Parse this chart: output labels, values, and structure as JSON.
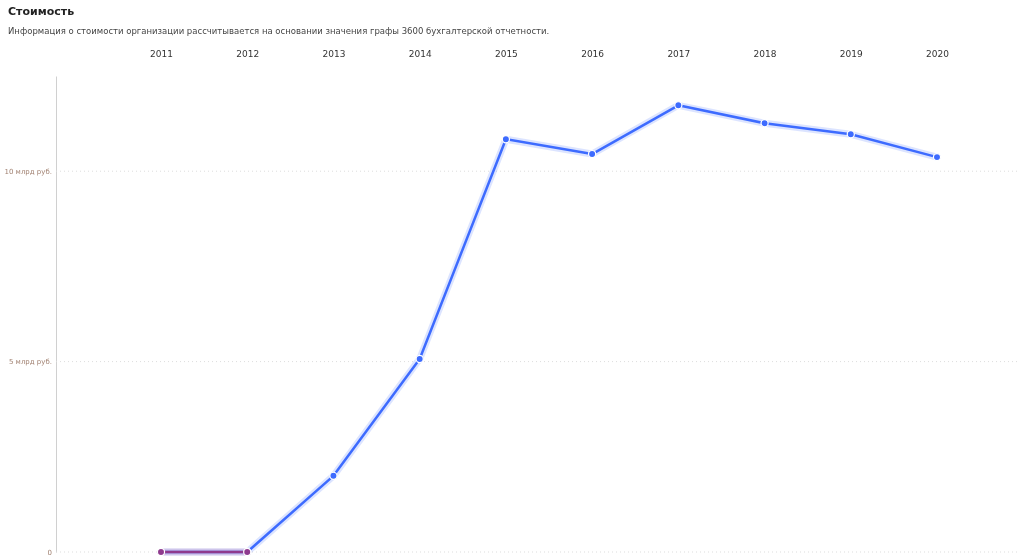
{
  "chart_data": {
    "type": "line",
    "title": "Стоимость",
    "subtitle": "Информация о стоимости организации рассчитывается на основании значения графы 3600 бухгалтерской отчетности.",
    "categories": [
      "2011",
      "2012",
      "2013",
      "2014",
      "2015",
      "2016",
      "2017",
      "2018",
      "2019",
      "2020"
    ],
    "series": [
      {
        "color": "#3d6bff",
        "values": [
          0,
          0,
          2.0,
          5.07,
          10.84,
          10.45,
          11.73,
          11.26,
          10.97,
          10.37
        ]
      },
      {
        "color": "#8e3a8e",
        "values": [
          0,
          0,
          null,
          null,
          null,
          null,
          null,
          null,
          null,
          null
        ]
      }
    ],
    "ylim": [
      0,
      12.5
    ],
    "yticks": [
      0,
      {
        "value": 5,
        "label": "5 млрд руб."
      },
      {
        "value": 10,
        "label": "10 млрд руб."
      }
    ],
    "grid": "y",
    "marker": "circle",
    "line_style": "solid"
  }
}
